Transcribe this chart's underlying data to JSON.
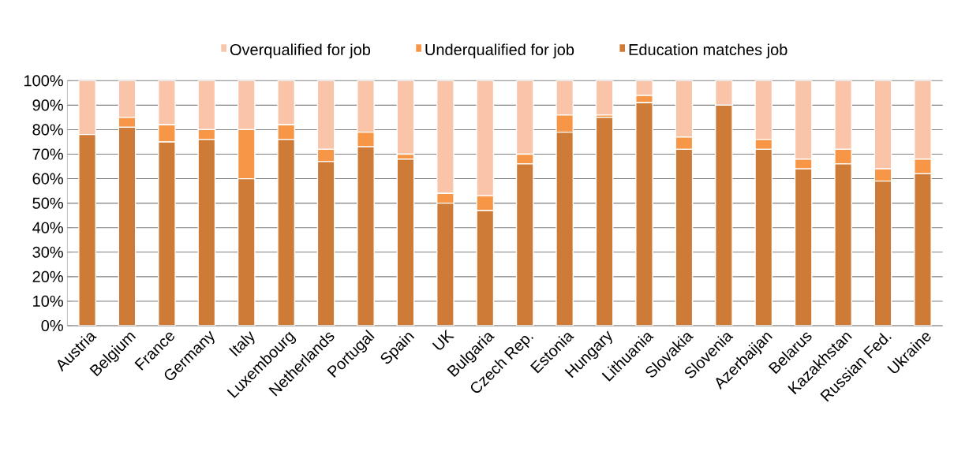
{
  "chart_data": {
    "type": "bar",
    "stacked": true,
    "categories": [
      "Austria",
      "Belgium",
      "France",
      "Germany",
      "Italy",
      "Luxembourg",
      "Netherlands",
      "Portugal",
      "Spain",
      "UK",
      "Bulgaria",
      "Czech Rep.",
      "Estonia",
      "Hungary",
      "Lithuania",
      "Slovakia",
      "Slovenia",
      "Azerbaijan",
      "Belarus",
      "Kazakhstan",
      "Russian Fed.",
      "Ukraine"
    ],
    "series": [
      {
        "name": "Education matches job",
        "color": "#cd7b37",
        "values": [
          78,
          81,
          75,
          76,
          60,
          76,
          67,
          73,
          68,
          50,
          47,
          66,
          79,
          85,
          91,
          72,
          90,
          72,
          64,
          66,
          59,
          62
        ]
      },
      {
        "name": "Underqualified for job",
        "color": "#f79646",
        "values": [
          0,
          4,
          7,
          4,
          20,
          6,
          5,
          6,
          2,
          4,
          6,
          4,
          7,
          1,
          3,
          5,
          0,
          4,
          4,
          6,
          5,
          6
        ]
      },
      {
        "name": "Overqualified for job",
        "color": "#fac4a8",
        "values": [
          22,
          15,
          18,
          20,
          20,
          18,
          28,
          21,
          30,
          46,
          47,
          30,
          14,
          14,
          6,
          23,
          10,
          24,
          32,
          28,
          36,
          32
        ]
      }
    ],
    "ylim": [
      0,
      100
    ],
    "yticks": [
      {
        "value": 0,
        "label": "0%"
      },
      {
        "value": 10,
        "label": "10%"
      },
      {
        "value": 20,
        "label": "20%"
      },
      {
        "value": 30,
        "label": "30%"
      },
      {
        "value": 40,
        "label": "40%"
      },
      {
        "value": 50,
        "label": "50%"
      },
      {
        "value": 60,
        "label": "60%"
      },
      {
        "value": 70,
        "label": "70%"
      },
      {
        "value": 80,
        "label": "80%"
      },
      {
        "value": 90,
        "label": "90%"
      },
      {
        "value": 100,
        "label": "100%"
      }
    ],
    "grid": "y",
    "legend": "top"
  }
}
